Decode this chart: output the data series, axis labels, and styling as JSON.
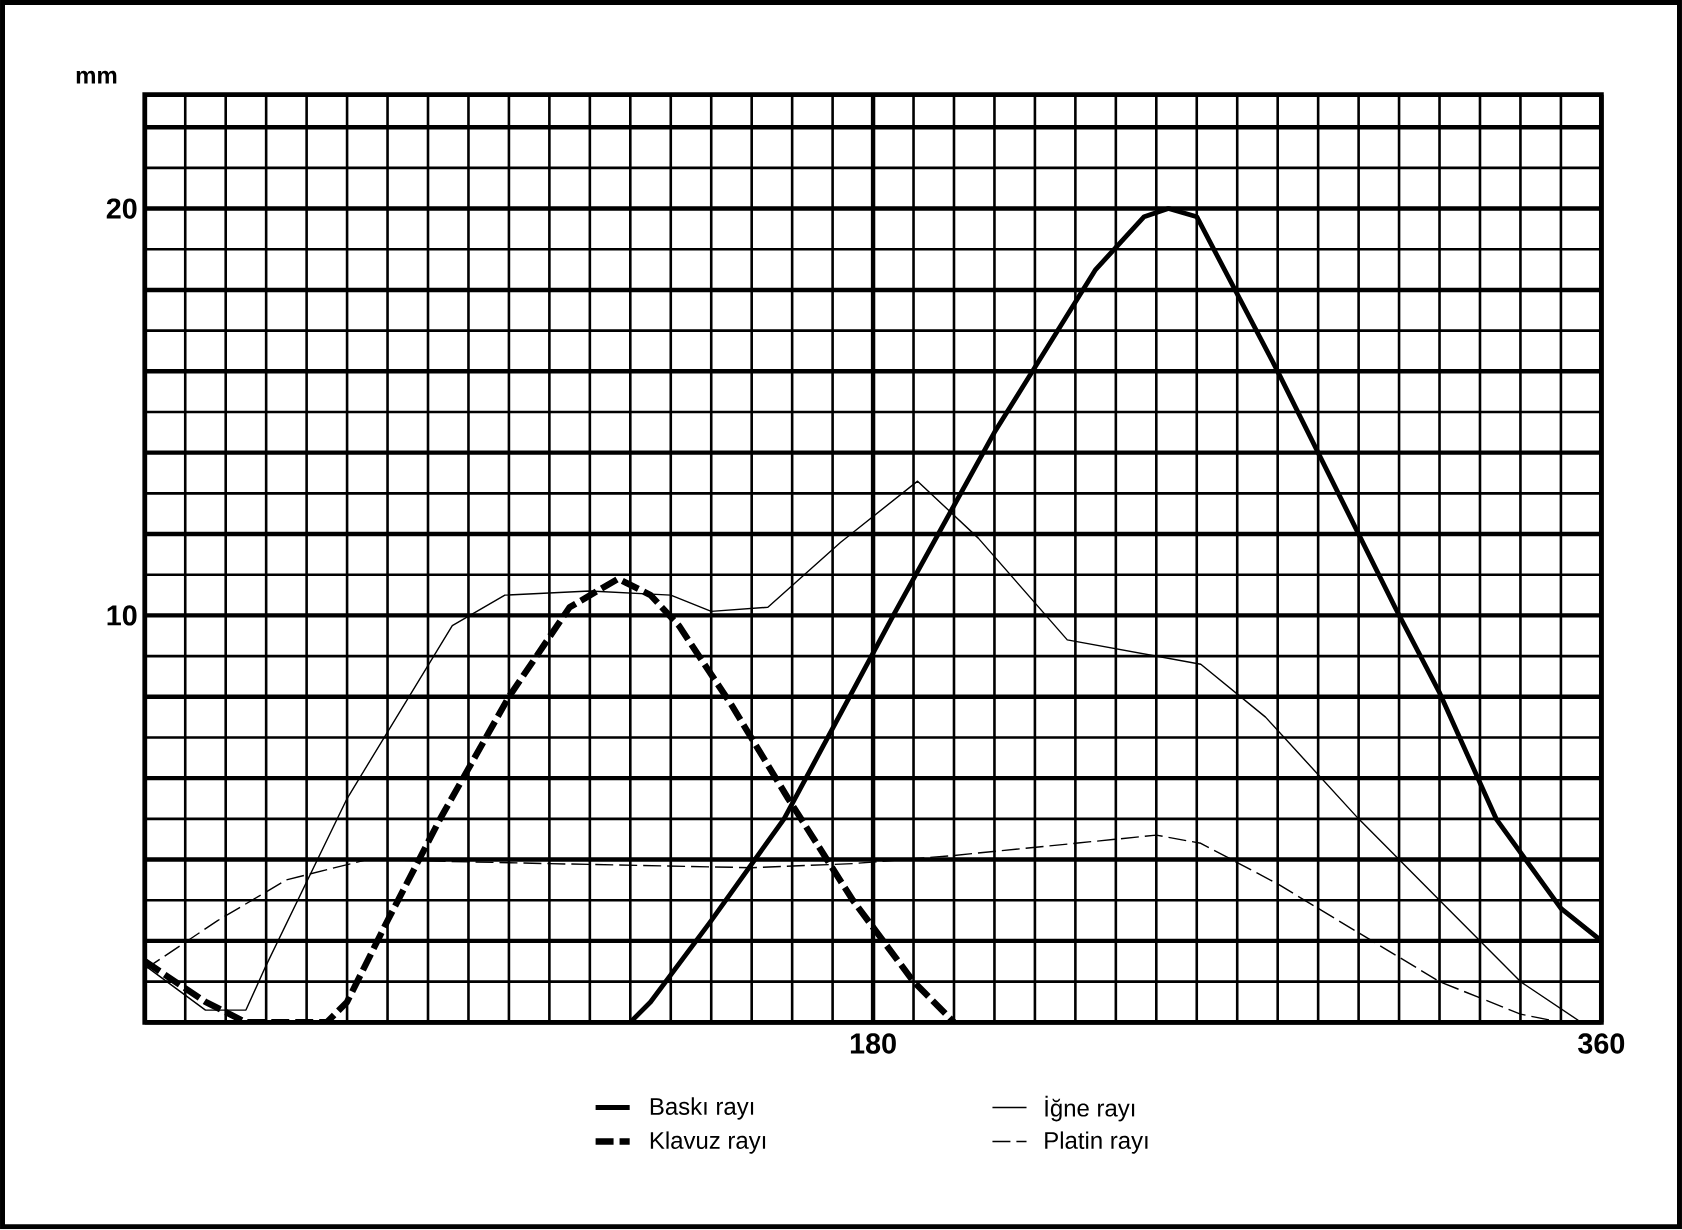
{
  "chart_data": {
    "type": "line",
    "ylabel": "mm",
    "xlim": [
      0,
      360
    ],
    "ylim": [
      0,
      22.8
    ],
    "xticks": [
      180,
      360
    ],
    "yticks": [
      10,
      20
    ],
    "grid": true,
    "legend": "bottom",
    "series": [
      {
        "name": "Baskı rayı",
        "color": "#000000",
        "line_style": "solid",
        "x": [
          0,
          120,
          125,
          140,
          158,
          185,
          210,
          235,
          247,
          253,
          260,
          280,
          309,
          320,
          334,
          350,
          360
        ],
        "values": [
          0,
          0,
          0.5,
          2.5,
          5,
          10,
          14.5,
          18.5,
          19.8,
          20,
          19.8,
          16,
          10.2,
          8.1,
          5,
          2.8,
          2
        ]
      },
      {
        "name": "Klavuz rayı",
        "color": "#000000",
        "line_style": "dashed",
        "x": [
          0,
          15,
          25,
          45,
          50,
          60,
          73,
          90,
          105,
          117,
          125,
          132,
          145,
          159,
          175,
          190,
          200
        ],
        "values": [
          1.5,
          0.5,
          0,
          0,
          0.5,
          2.5,
          5,
          8,
          10.2,
          10.9,
          10.5,
          9.75,
          7.8,
          5.5,
          3,
          1,
          0
        ]
      },
      {
        "name": "İğne rayı",
        "color": "#000000",
        "line_style": "solid",
        "x": [
          0,
          15,
          25,
          30,
          50,
          76,
          89,
          110,
          130,
          140,
          154,
          172,
          191,
          206,
          228,
          261,
          277,
          300,
          320,
          340,
          355
        ],
        "values": [
          1.4,
          0.3,
          0.3,
          1.4,
          5.5,
          9.75,
          10.5,
          10.6,
          10.5,
          10.1,
          10.2,
          11.8,
          13.3,
          11.9,
          9.4,
          8.8,
          7.5,
          5,
          3,
          1,
          0
        ]
      },
      {
        "name": "Platin rayı",
        "color": "#000000",
        "line_style": "dashed",
        "x": [
          0,
          18,
          35,
          55,
          100,
          150,
          175,
          200,
          230,
          250,
          261,
          280,
          300,
          320,
          340,
          350
        ],
        "values": [
          1.3,
          2.5,
          3.5,
          4,
          3.9,
          3.8,
          3.9,
          4.1,
          4.4,
          4.6,
          4.4,
          3.4,
          2.2,
          1,
          0.2,
          0
        ]
      }
    ]
  }
}
